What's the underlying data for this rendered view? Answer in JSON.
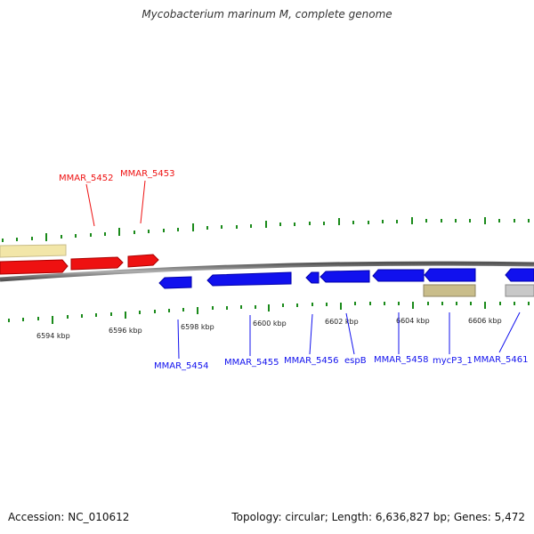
{
  "title": "Mycobacterium marinum M, complete genome",
  "colors": {
    "forward": "#ee1111",
    "reverse": "#1111ee",
    "pseudo_forward": "#f2e6a8",
    "pseudo_reverse": "#c9bd8a",
    "other_reverse": "#c8c8c8",
    "tick": "#1a8a1a",
    "backbone": "#888888"
  },
  "scale": {
    "kbp_labels": [
      "6594 kbp",
      "6596 kbp",
      "6598 kbp",
      "6600 kbp",
      "6602 kbp",
      "6604 kbp",
      "6606 kbp"
    ]
  },
  "genes": {
    "forward_labels": [
      "MMAR_5452",
      "MMAR_5453"
    ],
    "reverse_labels": [
      "MMAR_5454",
      "MMAR_5455",
      "MMAR_5456",
      "espB",
      "MMAR_5458",
      "mycP3_1",
      "MMAR_5461"
    ]
  },
  "footer": {
    "accession": "Accession: NC_010612",
    "info": "Topology: circular; Length: 6,636,827 bp; Genes: 5,472"
  }
}
